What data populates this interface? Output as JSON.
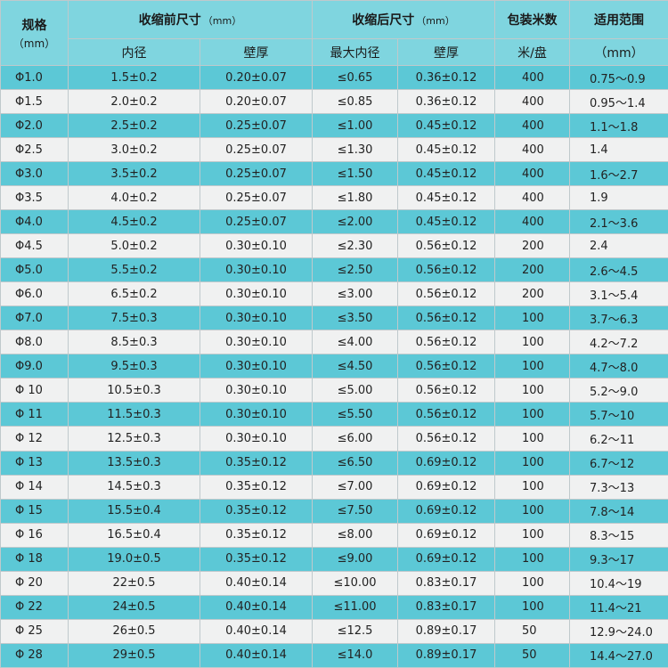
{
  "headers": {
    "spec": "规格",
    "spec_unit": "（mm）",
    "before": "收缩前尺寸",
    "before_unit": "（mm）",
    "after": "收缩后尺寸",
    "after_unit": "（mm）",
    "pack": "包装米数",
    "range": "适用范围",
    "inner_diameter": "内径",
    "wall_thickness_before": "壁厚",
    "max_inner_diameter": "最大内径",
    "wall_thickness_after": "壁厚",
    "pack_unit": "米/盘",
    "range_unit": "（mm）"
  },
  "rows": [
    {
      "spec": "Φ1.0",
      "inner": "1.5±0.2",
      "wall": "0.20±0.07",
      "max_inner": "≤0.65",
      "wall_after": "0.36±0.12",
      "pack": "400",
      "range": "0.75～0.9"
    },
    {
      "spec": "Φ1.5",
      "inner": "2.0±0.2",
      "wall": "0.20±0.07",
      "max_inner": "≤0.85",
      "wall_after": "0.36±0.12",
      "pack": "400",
      "range": "0.95～1.4"
    },
    {
      "spec": "Φ2.0",
      "inner": "2.5±0.2",
      "wall": "0.25±0.07",
      "max_inner": "≤1.00",
      "wall_after": "0.45±0.12",
      "pack": "400",
      "range": "1.1～1.8"
    },
    {
      "spec": "Φ2.5",
      "inner": "3.0±0.2",
      "wall": "0.25±0.07",
      "max_inner": "≤1.30",
      "wall_after": "0.45±0.12",
      "pack": "400",
      "range": "1.4"
    },
    {
      "spec": "Φ3.0",
      "inner": "3.5±0.2",
      "wall": "0.25±0.07",
      "max_inner": "≤1.50",
      "wall_after": "0.45±0.12",
      "pack": "400",
      "range": "1.6～2.7"
    },
    {
      "spec": "Φ3.5",
      "inner": "4.0±0.2",
      "wall": "0.25±0.07",
      "max_inner": "≤1.80",
      "wall_after": "0.45±0.12",
      "pack": "400",
      "range": "1.9"
    },
    {
      "spec": "Φ4.0",
      "inner": "4.5±0.2",
      "wall": "0.25±0.07",
      "max_inner": "≤2.00",
      "wall_after": "0.45±0.12",
      "pack": "400",
      "range": "2.1～3.6"
    },
    {
      "spec": "Φ4.5",
      "inner": "5.0±0.2",
      "wall": "0.30±0.10",
      "max_inner": "≤2.30",
      "wall_after": "0.56±0.12",
      "pack": "200",
      "range": "2.4"
    },
    {
      "spec": "Φ5.0",
      "inner": "5.5±0.2",
      "wall": "0.30±0.10",
      "max_inner": "≤2.50",
      "wall_after": "0.56±0.12",
      "pack": "200",
      "range": "2.6～4.5"
    },
    {
      "spec": "Φ6.0",
      "inner": "6.5±0.2",
      "wall": "0.30±0.10",
      "max_inner": "≤3.00",
      "wall_after": "0.56±0.12",
      "pack": "200",
      "range": "3.1～5.4"
    },
    {
      "spec": "Φ7.0",
      "inner": "7.5±0.3",
      "wall": "0.30±0.10",
      "max_inner": "≤3.50",
      "wall_after": "0.56±0.12",
      "pack": "100",
      "range": "3.7～6.3"
    },
    {
      "spec": "Φ8.0",
      "inner": "8.5±0.3",
      "wall": "0.30±0.10",
      "max_inner": "≤4.00",
      "wall_after": "0.56±0.12",
      "pack": "100",
      "range": "4.2～7.2"
    },
    {
      "spec": "Φ9.0",
      "inner": "9.5±0.3",
      "wall": "0.30±0.10",
      "max_inner": "≤4.50",
      "wall_after": "0.56±0.12",
      "pack": "100",
      "range": "4.7～8.0"
    },
    {
      "spec": "Φ 10",
      "inner": "10.5±0.3",
      "wall": "0.30±0.10",
      "max_inner": "≤5.00",
      "wall_after": "0.56±0.12",
      "pack": "100",
      "range": "5.2～9.0"
    },
    {
      "spec": "Φ 11",
      "inner": "11.5±0.3",
      "wall": "0.30±0.10",
      "max_inner": "≤5.50",
      "wall_after": "0.56±0.12",
      "pack": "100",
      "range": "5.7～10"
    },
    {
      "spec": "Φ 12",
      "inner": "12.5±0.3",
      "wall": "0.30±0.10",
      "max_inner": "≤6.00",
      "wall_after": "0.56±0.12",
      "pack": "100",
      "range": "6.2～11"
    },
    {
      "spec": "Φ 13",
      "inner": "13.5±0.3",
      "wall": "0.35±0.12",
      "max_inner": "≤6.50",
      "wall_after": "0.69±0.12",
      "pack": "100",
      "range": "6.7～12"
    },
    {
      "spec": "Φ 14",
      "inner": "14.5±0.3",
      "wall": "0.35±0.12",
      "max_inner": "≤7.00",
      "wall_after": "0.69±0.12",
      "pack": "100",
      "range": "7.3～13"
    },
    {
      "spec": "Φ 15",
      "inner": "15.5±0.4",
      "wall": "0.35±0.12",
      "max_inner": "≤7.50",
      "wall_after": "0.69±0.12",
      "pack": "100",
      "range": "7.8～14"
    },
    {
      "spec": "Φ 16",
      "inner": "16.5±0.4",
      "wall": "0.35±0.12",
      "max_inner": "≤8.00",
      "wall_after": "0.69±0.12",
      "pack": "100",
      "range": "8.3～15"
    },
    {
      "spec": "Φ 18",
      "inner": "19.0±0.5",
      "wall": "0.35±0.12",
      "max_inner": "≤9.00",
      "wall_after": "0.69±0.12",
      "pack": "100",
      "range": "9.3～17"
    },
    {
      "spec": "Φ 20",
      "inner": "22±0.5",
      "wall": "0.40±0.14",
      "max_inner": "≤10.00",
      "wall_after": "0.83±0.17",
      "pack": "100",
      "range": "10.4～19"
    },
    {
      "spec": "Φ 22",
      "inner": "24±0.5",
      "wall": "0.40±0.14",
      "max_inner": "≤11.00",
      "wall_after": "0.83±0.17",
      "pack": "100",
      "range": "11.4～21"
    },
    {
      "spec": "Φ 25",
      "inner": "26±0.5",
      "wall": "0.40±0.14",
      "max_inner": "≤12.5",
      "wall_after": "0.89±0.17",
      "pack": "50",
      "range": "12.9～24.0"
    },
    {
      "spec": "Φ 28",
      "inner": "29±0.5",
      "wall": "0.40±0.14",
      "max_inner": "≤14.0",
      "wall_after": "0.89±0.17",
      "pack": "50",
      "range": "14.4～27.0"
    }
  ]
}
